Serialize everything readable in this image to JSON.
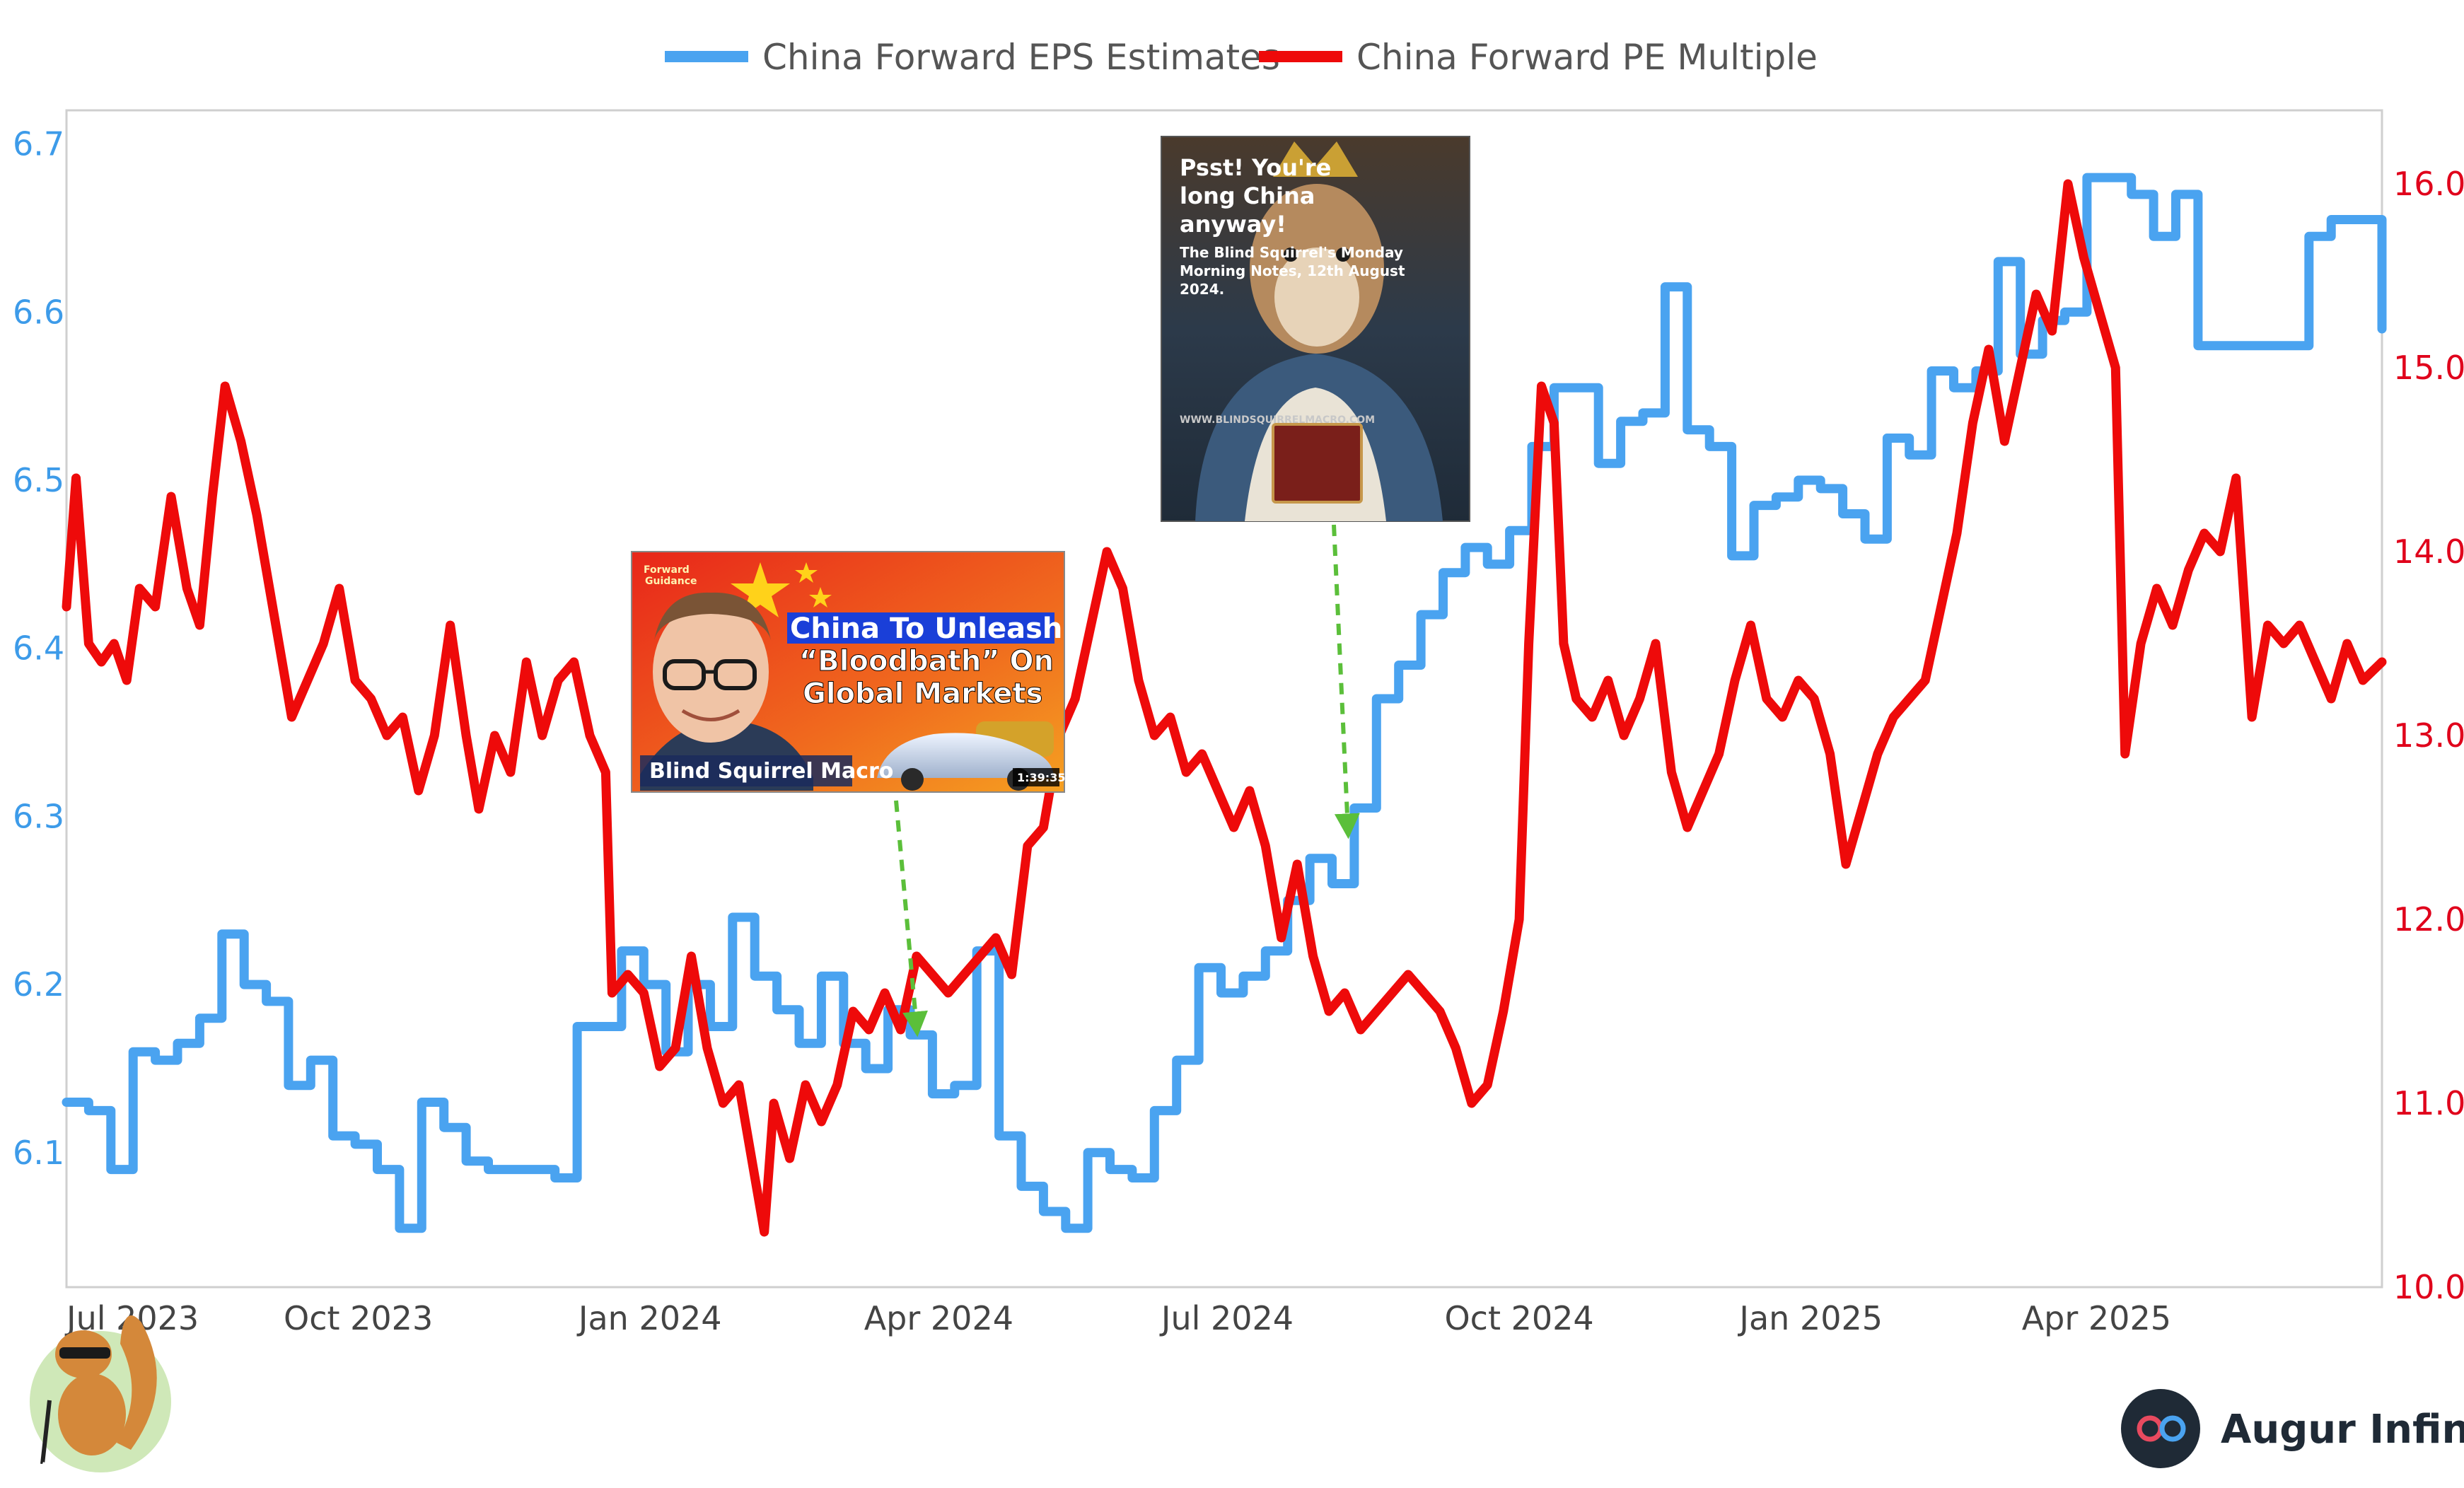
{
  "chart_data": {
    "type": "line",
    "title": "",
    "legend_position": "top-center",
    "grid": false,
    "x_tick_labels": [
      "Jul 2023",
      "Oct 2023",
      "Jan 2024",
      "Apr 2024",
      "Jul 2024",
      "Oct 2024",
      "Jan 2025",
      "Apr 2025"
    ],
    "x_tick_dates": [
      "2023-07-01",
      "2023-10-01",
      "2024-01-01",
      "2024-04-01",
      "2024-07-01",
      "2024-10-01",
      "2025-01-01",
      "2025-04-01"
    ],
    "x_range": [
      "2023-07-01",
      "2025-06-30"
    ],
    "y_left": {
      "range": [
        6.02,
        6.72
      ],
      "ticks": [
        "6.1",
        "6.2",
        "6.3",
        "6.4",
        "6.5",
        "6.6",
        "6.7"
      ]
    },
    "y_right": {
      "range": [
        10.0,
        16.4
      ],
      "ticks": [
        "10.0",
        "11.0",
        "12.0",
        "13.0",
        "14.0",
        "15.0",
        "16.0"
      ]
    },
    "series": [
      {
        "name": "China Forward EPS Estimates",
        "axis": "left",
        "color": "#4aa3f0",
        "line_shape": "step",
        "points": [
          [
            "2023-07-01",
            6.13
          ],
          [
            "2023-07-08",
            6.125
          ],
          [
            "2023-07-15",
            6.09
          ],
          [
            "2023-07-22",
            6.16
          ],
          [
            "2023-07-29",
            6.155
          ],
          [
            "2023-08-05",
            6.165
          ],
          [
            "2023-08-12",
            6.18
          ],
          [
            "2023-08-19",
            6.23
          ],
          [
            "2023-08-26",
            6.2
          ],
          [
            "2023-09-02",
            6.19
          ],
          [
            "2023-09-09",
            6.14
          ],
          [
            "2023-09-16",
            6.155
          ],
          [
            "2023-09-23",
            6.11
          ],
          [
            "2023-09-30",
            6.105
          ],
          [
            "2023-10-07",
            6.09
          ],
          [
            "2023-10-14",
            6.055
          ],
          [
            "2023-10-21",
            6.13
          ],
          [
            "2023-10-28",
            6.115
          ],
          [
            "2023-11-04",
            6.095
          ],
          [
            "2023-11-11",
            6.09
          ],
          [
            "2023-11-25",
            6.09
          ],
          [
            "2023-12-02",
            6.085
          ],
          [
            "2023-12-09",
            6.175
          ],
          [
            "2023-12-16",
            6.175
          ],
          [
            "2023-12-23",
            6.22
          ],
          [
            "2023-12-30",
            6.2
          ],
          [
            "2024-01-06",
            6.16
          ],
          [
            "2024-01-13",
            6.2
          ],
          [
            "2024-01-20",
            6.175
          ],
          [
            "2024-01-27",
            6.24
          ],
          [
            "2024-02-03",
            6.205
          ],
          [
            "2024-02-10",
            6.185
          ],
          [
            "2024-02-17",
            6.165
          ],
          [
            "2024-02-24",
            6.205
          ],
          [
            "2024-03-02",
            6.165
          ],
          [
            "2024-03-09",
            6.15
          ],
          [
            "2024-03-16",
            6.185
          ],
          [
            "2024-03-23",
            6.17
          ],
          [
            "2024-03-30",
            6.135
          ],
          [
            "2024-04-06",
            6.14
          ],
          [
            "2024-04-13",
            6.22
          ],
          [
            "2024-04-20",
            6.11
          ],
          [
            "2024-04-27",
            6.08
          ],
          [
            "2024-05-04",
            6.065
          ],
          [
            "2024-05-11",
            6.055
          ],
          [
            "2024-05-18",
            6.1
          ],
          [
            "2024-05-25",
            6.09
          ],
          [
            "2024-06-01",
            6.085
          ],
          [
            "2024-06-08",
            6.125
          ],
          [
            "2024-06-15",
            6.155
          ],
          [
            "2024-06-22",
            6.21
          ],
          [
            "2024-06-29",
            6.195
          ],
          [
            "2024-07-06",
            6.205
          ],
          [
            "2024-07-13",
            6.22
          ],
          [
            "2024-07-20",
            6.25
          ],
          [
            "2024-07-27",
            6.275
          ],
          [
            "2024-08-03",
            6.26
          ],
          [
            "2024-08-10",
            6.305
          ],
          [
            "2024-08-17",
            6.37
          ],
          [
            "2024-08-24",
            6.39
          ],
          [
            "2024-08-31",
            6.42
          ],
          [
            "2024-09-07",
            6.445
          ],
          [
            "2024-09-14",
            6.46
          ],
          [
            "2024-09-21",
            6.45
          ],
          [
            "2024-09-28",
            6.47
          ],
          [
            "2024-10-05",
            6.52
          ],
          [
            "2024-10-12",
            6.555
          ],
          [
            "2024-10-19",
            6.555
          ],
          [
            "2024-10-26",
            6.51
          ],
          [
            "2024-11-02",
            6.535
          ],
          [
            "2024-11-09",
            6.54
          ],
          [
            "2024-11-16",
            6.615
          ],
          [
            "2024-11-23",
            6.53
          ],
          [
            "2024-11-30",
            6.52
          ],
          [
            "2024-12-07",
            6.455
          ],
          [
            "2024-12-14",
            6.485
          ],
          [
            "2024-12-21",
            6.49
          ],
          [
            "2024-12-28",
            6.5
          ],
          [
            "2025-01-04",
            6.495
          ],
          [
            "2025-01-11",
            6.48
          ],
          [
            "2025-01-18",
            6.465
          ],
          [
            "2025-01-25",
            6.525
          ],
          [
            "2025-02-01",
            6.515
          ],
          [
            "2025-02-08",
            6.565
          ],
          [
            "2025-02-15",
            6.555
          ],
          [
            "2025-02-22",
            6.565
          ],
          [
            "2025-03-01",
            6.63
          ],
          [
            "2025-03-08",
            6.575
          ],
          [
            "2025-03-15",
            6.595
          ],
          [
            "2025-03-22",
            6.6
          ],
          [
            "2025-03-29",
            6.68
          ],
          [
            "2025-04-05",
            6.68
          ],
          [
            "2025-04-12",
            6.67
          ],
          [
            "2025-04-19",
            6.645
          ],
          [
            "2025-04-26",
            6.67
          ],
          [
            "2025-05-03",
            6.58
          ],
          [
            "2025-05-31",
            6.58
          ],
          [
            "2025-06-07",
            6.645
          ],
          [
            "2025-06-14",
            6.655
          ],
          [
            "2025-06-28",
            6.655
          ],
          [
            "2025-06-30",
            6.59
          ]
        ]
      },
      {
        "name": "China Forward PE Multiple",
        "axis": "right",
        "color": "#ee0a0a",
        "line_shape": "linear",
        "points": [
          [
            "2023-07-01",
            13.7
          ],
          [
            "2023-07-04",
            14.4
          ],
          [
            "2023-07-08",
            13.5
          ],
          [
            "2023-07-12",
            13.4
          ],
          [
            "2023-07-16",
            13.5
          ],
          [
            "2023-07-20",
            13.3
          ],
          [
            "2023-07-24",
            13.8
          ],
          [
            "2023-07-29",
            13.7
          ],
          [
            "2023-08-03",
            14.3
          ],
          [
            "2023-08-08",
            13.8
          ],
          [
            "2023-08-12",
            13.6
          ],
          [
            "2023-08-16",
            14.3
          ],
          [
            "2023-08-20",
            14.9
          ],
          [
            "2023-08-25",
            14.6
          ],
          [
            "2023-08-30",
            14.2
          ],
          [
            "2023-09-05",
            13.6
          ],
          [
            "2023-09-10",
            13.1
          ],
          [
            "2023-09-15",
            13.3
          ],
          [
            "2023-09-20",
            13.5
          ],
          [
            "2023-09-25",
            13.8
          ],
          [
            "2023-09-30",
            13.3
          ],
          [
            "2023-10-05",
            13.2
          ],
          [
            "2023-10-10",
            13.0
          ],
          [
            "2023-10-15",
            13.1
          ],
          [
            "2023-10-20",
            12.7
          ],
          [
            "2023-10-25",
            13.0
          ],
          [
            "2023-10-30",
            13.6
          ],
          [
            "2023-11-04",
            13.0
          ],
          [
            "2023-11-08",
            12.6
          ],
          [
            "2023-11-13",
            13.0
          ],
          [
            "2023-11-18",
            12.8
          ],
          [
            "2023-11-23",
            13.4
          ],
          [
            "2023-11-28",
            13.0
          ],
          [
            "2023-12-03",
            13.3
          ],
          [
            "2023-12-08",
            13.4
          ],
          [
            "2023-12-13",
            13.0
          ],
          [
            "2023-12-18",
            12.8
          ],
          [
            "2023-12-20",
            11.6
          ],
          [
            "2023-12-25",
            11.7
          ],
          [
            "2023-12-30",
            11.6
          ],
          [
            "2024-01-04",
            11.2
          ],
          [
            "2024-01-09",
            11.3
          ],
          [
            "2024-01-14",
            11.8
          ],
          [
            "2024-01-19",
            11.3
          ],
          [
            "2024-01-24",
            11.0
          ],
          [
            "2024-01-29",
            11.1
          ],
          [
            "2024-02-03",
            10.6
          ],
          [
            "2024-02-06",
            10.3
          ],
          [
            "2024-02-09",
            11.0
          ],
          [
            "2024-02-14",
            10.7
          ],
          [
            "2024-02-19",
            11.1
          ],
          [
            "2024-02-24",
            10.9
          ],
          [
            "2024-02-29",
            11.1
          ],
          [
            "2024-03-05",
            11.5
          ],
          [
            "2024-03-10",
            11.4
          ],
          [
            "2024-03-15",
            11.6
          ],
          [
            "2024-03-20",
            11.4
          ],
          [
            "2024-03-25",
            11.8
          ],
          [
            "2024-03-30",
            11.7
          ],
          [
            "2024-04-04",
            11.6
          ],
          [
            "2024-04-09",
            11.7
          ],
          [
            "2024-04-14",
            11.8
          ],
          [
            "2024-04-19",
            11.9
          ],
          [
            "2024-04-24",
            11.7
          ],
          [
            "2024-04-29",
            12.4
          ],
          [
            "2024-05-04",
            12.5
          ],
          [
            "2024-05-09",
            13.0
          ],
          [
            "2024-05-14",
            13.2
          ],
          [
            "2024-05-19",
            13.6
          ],
          [
            "2024-05-24",
            14.0
          ],
          [
            "2024-05-29",
            13.8
          ],
          [
            "2024-06-03",
            13.3
          ],
          [
            "2024-06-08",
            13.0
          ],
          [
            "2024-06-13",
            13.1
          ],
          [
            "2024-06-18",
            12.8
          ],
          [
            "2024-06-23",
            12.9
          ],
          [
            "2024-06-28",
            12.7
          ],
          [
            "2024-07-03",
            12.5
          ],
          [
            "2024-07-08",
            12.7
          ],
          [
            "2024-07-13",
            12.4
          ],
          [
            "2024-07-18",
            11.9
          ],
          [
            "2024-07-23",
            12.3
          ],
          [
            "2024-07-28",
            11.8
          ],
          [
            "2024-08-02",
            11.5
          ],
          [
            "2024-08-07",
            11.6
          ],
          [
            "2024-08-12",
            11.4
          ],
          [
            "2024-08-17",
            11.5
          ],
          [
            "2024-08-22",
            11.6
          ],
          [
            "2024-08-27",
            11.7
          ],
          [
            "2024-09-01",
            11.6
          ],
          [
            "2024-09-06",
            11.5
          ],
          [
            "2024-09-11",
            11.3
          ],
          [
            "2024-09-16",
            11.0
          ],
          [
            "2024-09-21",
            11.1
          ],
          [
            "2024-09-26",
            11.5
          ],
          [
            "2024-10-01",
            12.0
          ],
          [
            "2024-10-04",
            13.5
          ],
          [
            "2024-10-08",
            14.9
          ],
          [
            "2024-10-12",
            14.7
          ],
          [
            "2024-10-15",
            13.5
          ],
          [
            "2024-10-19",
            13.2
          ],
          [
            "2024-10-24",
            13.1
          ],
          [
            "2024-10-29",
            13.3
          ],
          [
            "2024-11-03",
            13.0
          ],
          [
            "2024-11-08",
            13.2
          ],
          [
            "2024-11-13",
            13.5
          ],
          [
            "2024-11-18",
            12.8
          ],
          [
            "2024-11-23",
            12.5
          ],
          [
            "2024-11-28",
            12.7
          ],
          [
            "2024-12-03",
            12.9
          ],
          [
            "2024-12-08",
            13.3
          ],
          [
            "2024-12-13",
            13.6
          ],
          [
            "2024-12-18",
            13.2
          ],
          [
            "2024-12-23",
            13.1
          ],
          [
            "2024-12-28",
            13.3
          ],
          [
            "2025-01-02",
            13.2
          ],
          [
            "2025-01-07",
            12.9
          ],
          [
            "2025-01-12",
            12.3
          ],
          [
            "2025-01-17",
            12.6
          ],
          [
            "2025-01-22",
            12.9
          ],
          [
            "2025-01-27",
            13.1
          ],
          [
            "2025-02-01",
            13.2
          ],
          [
            "2025-02-06",
            13.3
          ],
          [
            "2025-02-11",
            13.7
          ],
          [
            "2025-02-16",
            14.1
          ],
          [
            "2025-02-21",
            14.7
          ],
          [
            "2025-02-26",
            15.1
          ],
          [
            "2025-03-03",
            14.6
          ],
          [
            "2025-03-08",
            15.0
          ],
          [
            "2025-03-13",
            15.4
          ],
          [
            "2025-03-18",
            15.2
          ],
          [
            "2025-03-23",
            16.0
          ],
          [
            "2025-03-28",
            15.6
          ],
          [
            "2025-04-02",
            15.3
          ],
          [
            "2025-04-07",
            15.0
          ],
          [
            "2025-04-10",
            12.9
          ],
          [
            "2025-04-15",
            13.5
          ],
          [
            "2025-04-20",
            13.8
          ],
          [
            "2025-04-25",
            13.6
          ],
          [
            "2025-04-30",
            13.9
          ],
          [
            "2025-05-05",
            14.1
          ],
          [
            "2025-05-10",
            14.0
          ],
          [
            "2025-05-15",
            14.4
          ],
          [
            "2025-05-20",
            13.1
          ],
          [
            "2025-05-25",
            13.6
          ],
          [
            "2025-05-30",
            13.5
          ],
          [
            "2025-06-04",
            13.6
          ],
          [
            "2025-06-09",
            13.4
          ],
          [
            "2025-06-14",
            13.2
          ],
          [
            "2025-06-19",
            13.5
          ],
          [
            "2025-06-24",
            13.3
          ],
          [
            "2025-06-30",
            13.4
          ]
        ]
      }
    ]
  },
  "annotations": {
    "thumbnail_video": {
      "title_line1": "China To Unleash",
      "title_line2": "“Bloodbath” On",
      "title_line3": "Global Markets",
      "channel": "Blind Squirrel Macro",
      "duration": "1:39:35",
      "corner_tag_line1": "Forward",
      "corner_tag_line2": "Guidance",
      "arrow_target_date": "2024-03-25",
      "arrow_color": "#5bbf3a"
    },
    "thumbnail_notes": {
      "title_line1": "Psst! You're",
      "title_line2": "long China",
      "title_line3": "anyway!",
      "subtitle_line1": "The Blind Squirrel's Monday",
      "subtitle_line2": "Morning Notes, 12th August",
      "subtitle_line3": "2024.",
      "website": "WWW.BLINDSQUIRRELMACRO.COM",
      "arrow_target_date": "2024-08-08",
      "arrow_color": "#5bbf3a"
    }
  },
  "branding": {
    "name": "Augur Infinity",
    "badge_icon": "infinity-icon",
    "mascot_icon": "squirrel-mascot-icon"
  }
}
